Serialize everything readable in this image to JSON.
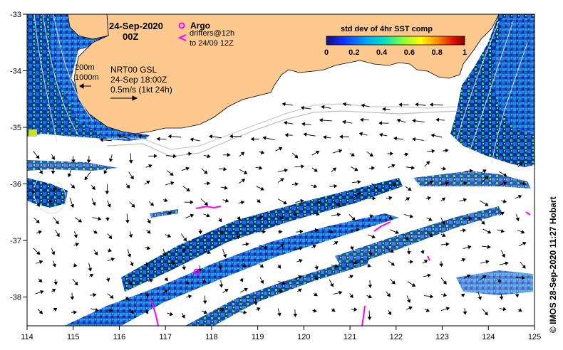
{
  "map": {
    "date_line1": "24-Sep-2020",
    "date_line2": "00Z",
    "legend_argo_title": "Argo",
    "legend_drifters_line1": "drifters@12h",
    "legend_drifters_line2": "to 24/09 12Z",
    "legend_isobath_200": "200m",
    "legend_isobath_1000": "1000m",
    "current_source": "NRT00 GSL",
    "current_time": "24-Sep 18:00Z",
    "current_scale": "0.5m/s (1kt 24h)",
    "colorbar_title": "std dev of 4hr SST comp",
    "colorbar_ticks": [
      "0",
      "0.2",
      "0.4",
      "0.6",
      "0.8",
      "1"
    ],
    "x_ticks": [
      "114",
      "115",
      "116",
      "117",
      "118",
      "119",
      "120",
      "121",
      "122",
      "123",
      "124",
      "125"
    ],
    "y_ticks": [
      "-33",
      "-34",
      "-35",
      "-36",
      "-37",
      "-38"
    ],
    "credit": "© IMOS 28-Sep-2020 11:27 Hobart"
  },
  "colors": {
    "land": "#fdc98e",
    "argo": "#ff00ff",
    "drifter": "#ff00ff",
    "sst_low": "#0a0a9a",
    "sst_mid": "#20a0ff",
    "sst_high": "#a01010"
  },
  "icons": [
    "argo-float-icon",
    "drifter-arrow-icon",
    "scale-arrow-icon"
  ]
}
